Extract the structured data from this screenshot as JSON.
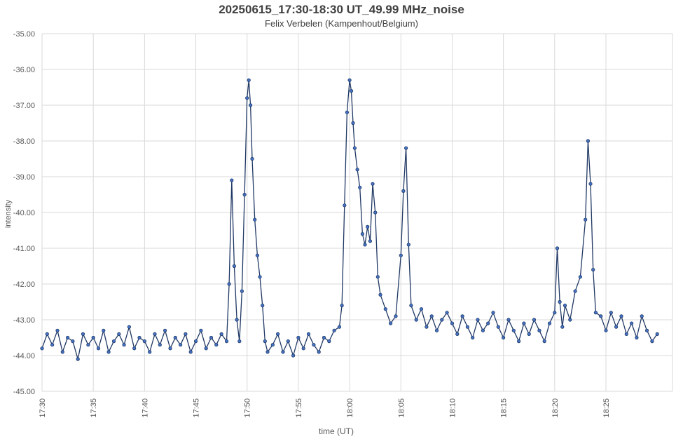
{
  "chart_data": {
    "type": "line",
    "title": "20250615_17:30-18:30 UT_49.99 MHz_noise",
    "subtitle": "Felix Verbelen (Kampenhout/Belgium)",
    "xlabel": "time (UT)",
    "ylabel": "intensity",
    "ylim": [
      -45,
      -35
    ],
    "yticks": [
      "-35.00",
      "-36.00",
      "-37.00",
      "-38.00",
      "-39.00",
      "-40.00",
      "-41.00",
      "-42.00",
      "-43.00",
      "-44.00",
      "-45.00"
    ],
    "xlim_minutes_after_1730": [
      0,
      60
    ],
    "xticks": [
      "17:30",
      "17:35",
      "17:40",
      "17:45",
      "17:50",
      "17:55",
      "18:00",
      "18:05",
      "18:10",
      "18:15",
      "18:20",
      "18:25"
    ],
    "grid": true,
    "legend": "none",
    "line_color": "#203864",
    "marker_color": "#4472c4",
    "series": [
      {
        "x_time": [
          "17:30:00",
          "17:30:30",
          "17:31:00",
          "17:31:30",
          "17:32:00",
          "17:32:30",
          "17:33:00",
          "17:33:30",
          "17:34:00",
          "17:34:30",
          "17:35:00",
          "17:35:30",
          "17:36:00",
          "17:36:30",
          "17:37:00",
          "17:37:30",
          "17:38:00",
          "17:38:30",
          "17:39:00",
          "17:39:30",
          "17:40:00",
          "17:40:30",
          "17:41:00",
          "17:41:30",
          "17:42:00",
          "17:42:30",
          "17:43:00",
          "17:43:30",
          "17:44:00",
          "17:44:30",
          "17:45:00",
          "17:45:30",
          "17:46:00",
          "17:46:30",
          "17:47:00",
          "17:47:30",
          "17:48:00",
          "17:48:15",
          "17:48:30",
          "17:48:45",
          "17:49:00",
          "17:49:15",
          "17:49:30",
          "17:49:45",
          "17:50:00",
          "17:50:10",
          "17:50:20",
          "17:50:30",
          "17:50:45",
          "17:51:00",
          "17:51:15",
          "17:51:30",
          "17:51:45",
          "17:52:00",
          "17:52:30",
          "17:53:00",
          "17:53:30",
          "17:54:00",
          "17:54:30",
          "17:55:00",
          "17:55:30",
          "17:56:00",
          "17:56:30",
          "17:57:00",
          "17:57:30",
          "17:58:00",
          "17:58:30",
          "17:59:00",
          "17:59:15",
          "17:59:30",
          "17:59:45",
          "18:00:00",
          "18:00:10",
          "18:00:20",
          "18:00:30",
          "18:00:45",
          "18:01:00",
          "18:01:15",
          "18:01:30",
          "18:01:45",
          "18:02:00",
          "18:02:15",
          "18:02:30",
          "18:02:45",
          "18:03:00",
          "18:03:30",
          "18:04:00",
          "18:04:30",
          "18:05:00",
          "18:05:15",
          "18:05:30",
          "18:05:45",
          "18:06:00",
          "18:06:30",
          "18:07:00",
          "18:07:30",
          "18:08:00",
          "18:08:30",
          "18:09:00",
          "18:09:30",
          "18:10:00",
          "18:10:30",
          "18:11:00",
          "18:11:30",
          "18:12:00",
          "18:12:30",
          "18:13:00",
          "18:13:30",
          "18:14:00",
          "18:14:30",
          "18:15:00",
          "18:15:30",
          "18:16:00",
          "18:16:30",
          "18:17:00",
          "18:17:30",
          "18:18:00",
          "18:18:30",
          "18:19:00",
          "18:19:30",
          "18:20:00",
          "18:20:15",
          "18:20:30",
          "18:20:45",
          "18:21:00",
          "18:21:30",
          "18:22:00",
          "18:22:30",
          "18:23:00",
          "18:23:15",
          "18:23:30",
          "18:23:45",
          "18:24:00",
          "18:24:30",
          "18:25:00",
          "18:25:30",
          "18:26:00",
          "18:26:30",
          "18:27:00",
          "18:27:30",
          "18:28:00",
          "18:28:30",
          "18:29:00",
          "18:29:30",
          "18:30:00"
        ],
        "y": [
          -43.8,
          -43.4,
          -43.7,
          -43.3,
          -43.9,
          -43.5,
          -43.6,
          -44.1,
          -43.4,
          -43.7,
          -43.5,
          -43.8,
          -43.3,
          -43.9,
          -43.6,
          -43.4,
          -43.7,
          -43.2,
          -43.8,
          -43.5,
          -43.6,
          -43.9,
          -43.4,
          -43.7,
          -43.3,
          -43.8,
          -43.5,
          -43.7,
          -43.4,
          -43.9,
          -43.6,
          -43.3,
          -43.8,
          -43.5,
          -43.7,
          -43.4,
          -43.6,
          -42.0,
          -39.1,
          -41.5,
          -43.0,
          -43.6,
          -42.2,
          -39.5,
          -36.8,
          -36.3,
          -37.0,
          -38.5,
          -40.2,
          -41.2,
          -41.8,
          -42.6,
          -43.6,
          -43.9,
          -43.7,
          -43.4,
          -43.9,
          -43.6,
          -44.0,
          -43.5,
          -43.8,
          -43.4,
          -43.7,
          -43.9,
          -43.5,
          -43.6,
          -43.3,
          -43.2,
          -42.6,
          -39.8,
          -37.2,
          -36.3,
          -36.6,
          -37.5,
          -38.2,
          -38.8,
          -39.3,
          -40.6,
          -40.9,
          -40.4,
          -40.8,
          -39.2,
          -40.0,
          -41.8,
          -42.3,
          -42.7,
          -43.1,
          -42.9,
          -41.2,
          -39.4,
          -38.2,
          -40.9,
          -42.6,
          -43.0,
          -42.7,
          -43.2,
          -42.9,
          -43.3,
          -43.0,
          -42.8,
          -43.1,
          -43.4,
          -42.9,
          -43.2,
          -43.5,
          -43.0,
          -43.3,
          -43.1,
          -42.8,
          -43.2,
          -43.5,
          -43.0,
          -43.3,
          -43.6,
          -43.1,
          -43.4,
          -43.0,
          -43.3,
          -43.6,
          -43.1,
          -42.8,
          -41.0,
          -42.5,
          -43.2,
          -42.6,
          -43.0,
          -42.2,
          -41.8,
          -40.2,
          -38.0,
          -39.2,
          -41.6,
          -42.8,
          -42.9,
          -43.3,
          -42.8,
          -43.2,
          -42.9,
          -43.4,
          -43.1,
          -43.5,
          -42.9,
          -43.3,
          -43.6,
          -43.4
        ]
      }
    ]
  }
}
